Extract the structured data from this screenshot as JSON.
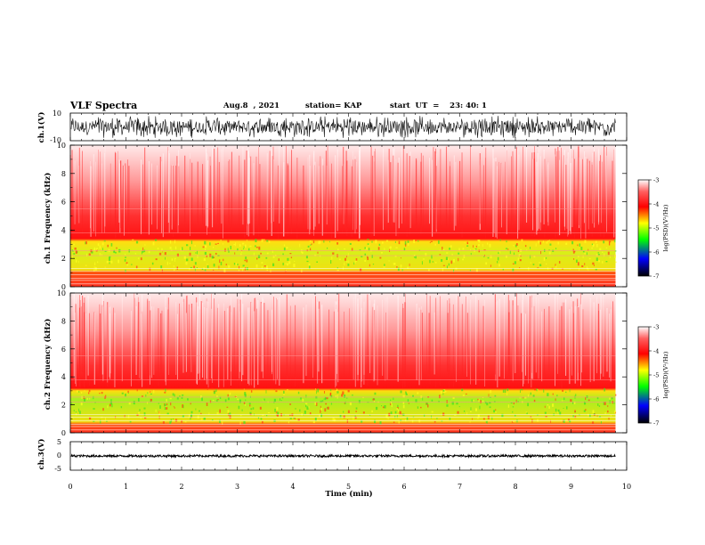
{
  "header": {
    "title": "VLF Spectra",
    "date": "Aug.8  , 2021",
    "station": "station= KAP",
    "start_ut": "start  UT  =    23: 40: 1"
  },
  "colorbar": {
    "label": "log(PSD)(V²/Hz)",
    "ticks": [
      "-3",
      "-4",
      "-5",
      "-6",
      "-7"
    ],
    "colors": [
      "#ffffff",
      "#ff0000",
      "#ffff00",
      "#00ff00",
      "#0000ff",
      "#000000"
    ]
  },
  "chart_data": [
    {
      "type": "line",
      "name": "ch1-waveform",
      "ylabel": "ch.1(V)",
      "ylim": [
        -10,
        10
      ],
      "yticks": [
        "10",
        "-10"
      ],
      "xlim": [
        0,
        10
      ],
      "amplitude_range": [
        -8,
        8
      ]
    },
    {
      "type": "heatmap",
      "name": "ch1-spectrogram",
      "ylabel": "ch.1 Frequency  (kHz)",
      "ylim": [
        0,
        10
      ],
      "yticks": [
        "0",
        "2",
        "4",
        "6",
        "8",
        "10"
      ],
      "xlim": [
        0,
        10
      ],
      "data_end_min": 9.8,
      "bands": [
        {
          "from_khz": 0,
          "to_khz": 1.2,
          "level": "red-yellow"
        },
        {
          "from_khz": 1.2,
          "to_khz": 3.4,
          "level": "yellow-green"
        },
        {
          "from_khz": 3.4,
          "to_khz": 5.0,
          "level": "red"
        },
        {
          "from_khz": 5.0,
          "to_khz": 10,
          "level": "pink-white"
        }
      ]
    },
    {
      "type": "heatmap",
      "name": "ch2-spectrogram",
      "ylabel": "ch.2 Frequency  (kHz)",
      "ylim": [
        0,
        10
      ],
      "yticks": [
        "0",
        "2",
        "4",
        "6",
        "8",
        "10"
      ],
      "xlim": [
        0,
        10
      ],
      "data_end_min": 9.8,
      "bands": [
        {
          "from_khz": 0,
          "to_khz": 0.8,
          "level": "red-yellow"
        },
        {
          "from_khz": 0.8,
          "to_khz": 3.2,
          "level": "yellow-green"
        },
        {
          "from_khz": 3.2,
          "to_khz": 4.8,
          "level": "red"
        },
        {
          "from_khz": 4.8,
          "to_khz": 10,
          "level": "pink-white"
        }
      ]
    },
    {
      "type": "line",
      "name": "ch3-waveform",
      "ylabel": "ch.3(V)",
      "ylim": [
        -5,
        5
      ],
      "yticks": [
        "5",
        "0",
        "-5"
      ],
      "xlim": [
        0,
        10
      ],
      "baseline": 0,
      "amplitude_range": [
        -0.4,
        0.4
      ],
      "xlabel": "Time  (min)",
      "xticks": [
        "0",
        "1",
        "2",
        "3",
        "4",
        "5",
        "6",
        "7",
        "8",
        "9",
        "10"
      ]
    }
  ]
}
